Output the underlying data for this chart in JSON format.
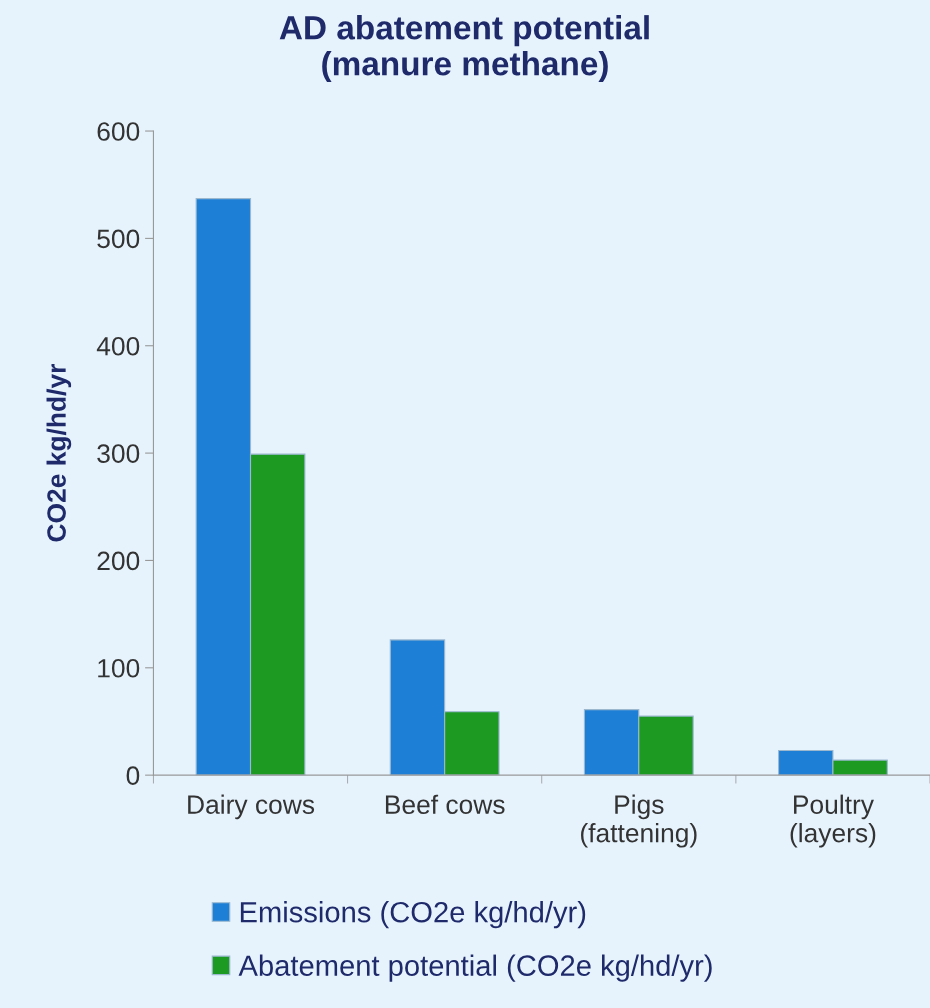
{
  "chart_data": {
    "type": "bar",
    "title": "AD abatement potential\n(manure methane)",
    "ylabel": "CO2e kg/hd/yr",
    "categories": [
      "Dairy cows",
      "Beef cows",
      "Pigs\n(fattening)",
      "Poultry\n(layers)"
    ],
    "series": [
      {
        "name": "Emissions (CO2e kg/hd/yr)",
        "color": "#1e7fd6",
        "values": [
          537,
          126,
          61,
          23
        ]
      },
      {
        "name": "Abatement potential (CO2e kg/hd/yr)",
        "color": "#1c9a22",
        "values": [
          299,
          59,
          55,
          14
        ]
      }
    ],
    "ylim": [
      0,
      600
    ],
    "yticks": [
      0,
      100,
      200,
      300,
      400,
      500,
      600
    ],
    "grid": false,
    "legend": "bottom"
  }
}
